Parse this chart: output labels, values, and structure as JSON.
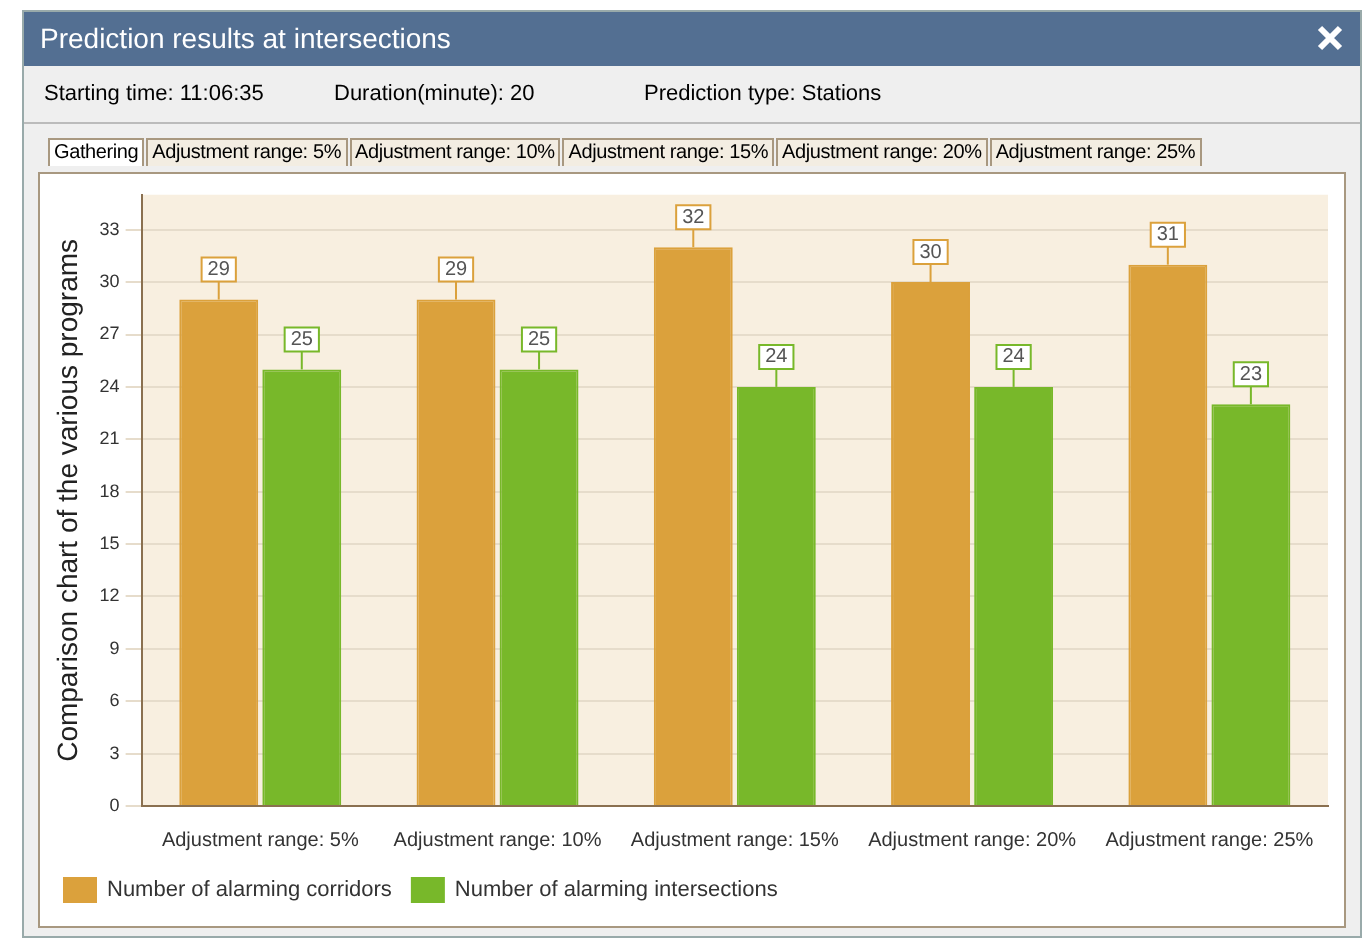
{
  "chart_data": {
    "type": "bar",
    "title": "Prediction results at intersections",
    "ylabel": "Comparison chart of the various programs",
    "annotations": [
      "Starting time: 11:06:35",
      "Duration(minute): 20",
      "Prediction type: Stations",
      "Gathering",
      "Adjustment range: 5%",
      "Adjustment range: 10%",
      "Adjustment range: 15%",
      "Adjustment range: 20%",
      "Adjustment range: 25%"
    ],
    "categories": [
      "Adjustment range: 5%",
      "Adjustment range: 10%",
      "Adjustment range: 15%",
      "Adjustment range: 20%",
      "Adjustment range: 25%"
    ],
    "series": [
      {
        "name": "Number of alarming corridors",
        "color": "#dba13c",
        "values": [
          29,
          29,
          32,
          30,
          31
        ]
      },
      {
        "name": "Number of alarming intersections",
        "color": "#78b82a",
        "values": [
          25,
          25,
          24,
          24,
          23
        ]
      }
    ],
    "ylim": [
      0,
      35
    ],
    "yticks": [
      0,
      3,
      6,
      9,
      12,
      15,
      18,
      21,
      24,
      27,
      30,
      33
    ],
    "grid": "y",
    "legend": "bottom left",
    "data_labels": true
  }
}
